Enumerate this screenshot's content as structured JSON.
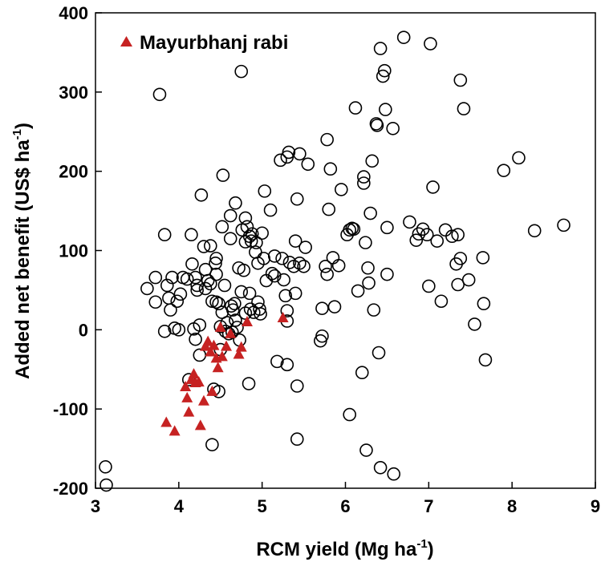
{
  "chart_data": {
    "type": "scatter",
    "title": "",
    "xlabel": "RCM yield (Mg ha",
    "xlabel_sup": "-1",
    "xlabel_end": ")",
    "ylabel": "Added net benefit (US$ ha",
    "ylabel_sup": "-1",
    "ylabel_end": ")",
    "xlim": [
      3,
      9
    ],
    "ylim": [
      -200,
      400
    ],
    "x_ticks": [
      "3",
      "4",
      "5",
      "6",
      "7",
      "8",
      "9"
    ],
    "y_ticks": [
      "-200",
      "-100",
      "0",
      "100",
      "200",
      "300",
      "400"
    ],
    "grid": false,
    "legend_position": "top-left",
    "series": [
      {
        "name": "",
        "marker": "circle-open",
        "color": "#000000",
        "points": [
          [
            3.12,
            -173
          ],
          [
            3.13,
            -196
          ],
          [
            3.62,
            52
          ],
          [
            3.72,
            66
          ],
          [
            3.72,
            35
          ],
          [
            3.77,
            297
          ],
          [
            3.83,
            -2
          ],
          [
            3.83,
            120
          ],
          [
            3.86,
            56
          ],
          [
            3.88,
            40
          ],
          [
            3.9,
            25
          ],
          [
            3.92,
            66
          ],
          [
            3.95,
            2
          ],
          [
            3.98,
            36
          ],
          [
            4.0,
            0
          ],
          [
            4.02,
            45
          ],
          [
            4.05,
            66
          ],
          [
            4.1,
            64
          ],
          [
            4.12,
            -63
          ],
          [
            4.15,
            120
          ],
          [
            4.16,
            83
          ],
          [
            4.18,
            1
          ],
          [
            4.2,
            66
          ],
          [
            4.2,
            -12
          ],
          [
            4.22,
            56
          ],
          [
            4.22,
            50
          ],
          [
            4.25,
            6
          ],
          [
            4.25,
            -32
          ],
          [
            4.27,
            170
          ],
          [
            4.3,
            105
          ],
          [
            4.32,
            52
          ],
          [
            4.32,
            76
          ],
          [
            4.35,
            62
          ],
          [
            4.38,
            106
          ],
          [
            4.38,
            58
          ],
          [
            4.4,
            36
          ],
          [
            4.4,
            -145
          ],
          [
            4.42,
            -75
          ],
          [
            4.44,
            84
          ],
          [
            4.45,
            70
          ],
          [
            4.45,
            90
          ],
          [
            4.45,
            35
          ],
          [
            4.48,
            33
          ],
          [
            4.48,
            -78
          ],
          [
            4.5,
            4
          ],
          [
            4.5,
            -25
          ],
          [
            4.52,
            22
          ],
          [
            4.52,
            130
          ],
          [
            4.53,
            195
          ],
          [
            4.55,
            56
          ],
          [
            4.56,
            -2
          ],
          [
            4.58,
            9
          ],
          [
            4.6,
            -5
          ],
          [
            4.62,
            144
          ],
          [
            4.62,
            115
          ],
          [
            4.63,
            30
          ],
          [
            4.64,
            -3
          ],
          [
            4.65,
            25
          ],
          [
            4.67,
            33
          ],
          [
            4.68,
            12
          ],
          [
            4.68,
            160
          ],
          [
            4.7,
            3
          ],
          [
            4.72,
            78
          ],
          [
            4.73,
            -13
          ],
          [
            4.75,
            326
          ],
          [
            4.75,
            48
          ],
          [
            4.76,
            126
          ],
          [
            4.78,
            75
          ],
          [
            4.8,
            141
          ],
          [
            4.8,
            111
          ],
          [
            4.8,
            21
          ],
          [
            4.82,
            130
          ],
          [
            4.84,
            -68
          ],
          [
            4.85,
            46
          ],
          [
            4.85,
            118
          ],
          [
            4.86,
            26
          ],
          [
            4.87,
            112
          ],
          [
            4.88,
            121
          ],
          [
            4.9,
            22
          ],
          [
            4.92,
            98
          ],
          [
            4.93,
            110
          ],
          [
            4.95,
            84
          ],
          [
            4.95,
            35
          ],
          [
            4.97,
            26
          ],
          [
            4.98,
            20
          ],
          [
            5.0,
            122
          ],
          [
            5.02,
            90
          ],
          [
            5.03,
            175
          ],
          [
            5.05,
            62
          ],
          [
            5.1,
            151
          ],
          [
            5.12,
            71
          ],
          [
            5.15,
            93
          ],
          [
            5.15,
            68
          ],
          [
            5.18,
            -40
          ],
          [
            5.22,
            214
          ],
          [
            5.24,
            90
          ],
          [
            5.26,
            63
          ],
          [
            5.28,
            43
          ],
          [
            5.3,
            218
          ],
          [
            5.3,
            -44
          ],
          [
            5.3,
            24
          ],
          [
            5.3,
            11
          ],
          [
            5.32,
            224
          ],
          [
            5.33,
            85
          ],
          [
            5.38,
            80
          ],
          [
            5.4,
            46
          ],
          [
            5.4,
            112
          ],
          [
            5.42,
            -71
          ],
          [
            5.42,
            -138
          ],
          [
            5.42,
            165
          ],
          [
            5.45,
            84
          ],
          [
            5.45,
            222
          ],
          [
            5.5,
            80
          ],
          [
            5.52,
            104
          ],
          [
            5.55,
            209
          ],
          [
            5.7,
            -14
          ],
          [
            5.72,
            -8
          ],
          [
            5.72,
            27
          ],
          [
            5.76,
            80
          ],
          [
            5.78,
            240
          ],
          [
            5.78,
            70
          ],
          [
            5.8,
            152
          ],
          [
            5.82,
            203
          ],
          [
            5.85,
            91
          ],
          [
            5.87,
            29
          ],
          [
            5.92,
            81
          ],
          [
            5.95,
            177
          ],
          [
            6.02,
            120
          ],
          [
            6.05,
            -107
          ],
          [
            6.05,
            126
          ],
          [
            6.08,
            128
          ],
          [
            6.1,
            127
          ],
          [
            6.12,
            280
          ],
          [
            6.15,
            49
          ],
          [
            6.2,
            -54
          ],
          [
            6.22,
            193
          ],
          [
            6.22,
            185
          ],
          [
            6.24,
            110
          ],
          [
            6.25,
            -152
          ],
          [
            6.27,
            78
          ],
          [
            6.28,
            59
          ],
          [
            6.3,
            147
          ],
          [
            6.32,
            213
          ],
          [
            6.34,
            25
          ],
          [
            6.37,
            260
          ],
          [
            6.38,
            258
          ],
          [
            6.4,
            -29
          ],
          [
            6.42,
            -174
          ],
          [
            6.42,
            355
          ],
          [
            6.45,
            320
          ],
          [
            6.47,
            327
          ],
          [
            6.48,
            278
          ],
          [
            6.5,
            129
          ],
          [
            6.5,
            70
          ],
          [
            6.57,
            254
          ],
          [
            6.58,
            -182
          ],
          [
            6.7,
            369
          ],
          [
            6.77,
            136
          ],
          [
            6.85,
            113
          ],
          [
            6.88,
            121
          ],
          [
            6.93,
            127
          ],
          [
            6.98,
            120
          ],
          [
            7.0,
            55
          ],
          [
            7.02,
            361
          ],
          [
            7.05,
            180
          ],
          [
            7.1,
            112
          ],
          [
            7.15,
            36
          ],
          [
            7.2,
            126
          ],
          [
            7.28,
            118
          ],
          [
            7.33,
            83
          ],
          [
            7.35,
            57
          ],
          [
            7.35,
            120
          ],
          [
            7.38,
            90
          ],
          [
            7.38,
            315
          ],
          [
            7.42,
            279
          ],
          [
            7.48,
            63
          ],
          [
            7.55,
            7
          ],
          [
            7.65,
            91
          ],
          [
            7.66,
            33
          ],
          [
            7.68,
            -38
          ],
          [
            7.9,
            201
          ],
          [
            8.08,
            217
          ],
          [
            8.27,
            125
          ],
          [
            8.62,
            132
          ]
        ]
      },
      {
        "name": "Mayurbhanj rabi",
        "marker": "triangle-filled",
        "color": "#c62222",
        "points": [
          [
            3.85,
            -117
          ],
          [
            3.95,
            -128
          ],
          [
            4.08,
            -72
          ],
          [
            4.1,
            -86
          ],
          [
            4.12,
            -104
          ],
          [
            4.15,
            -63
          ],
          [
            4.18,
            -56
          ],
          [
            4.2,
            -67
          ],
          [
            4.24,
            -66
          ],
          [
            4.26,
            -121
          ],
          [
            4.3,
            -90
          ],
          [
            4.32,
            -21
          ],
          [
            4.35,
            -15
          ],
          [
            4.38,
            -28
          ],
          [
            4.4,
            -78
          ],
          [
            4.42,
            -20
          ],
          [
            4.45,
            -36
          ],
          [
            4.47,
            -48
          ],
          [
            4.5,
            3
          ],
          [
            4.52,
            -34
          ],
          [
            4.57,
            -21
          ],
          [
            4.62,
            -5
          ],
          [
            4.72,
            -31
          ],
          [
            4.75,
            -22
          ],
          [
            4.82,
            10
          ],
          [
            5.25,
            15
          ]
        ]
      }
    ]
  }
}
